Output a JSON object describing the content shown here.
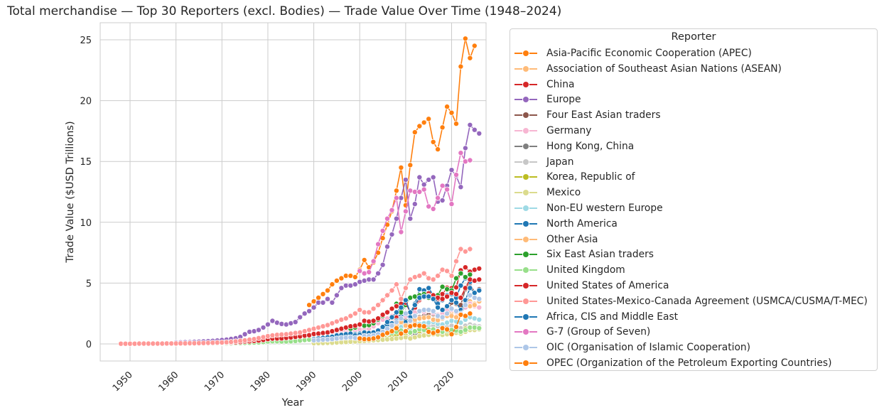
{
  "chart_data": {
    "type": "line",
    "title": "Total merchandise — Top 30 Reporters (excl. Bodies) — Trade Value Over Time (1948–2024)",
    "xlabel": "Year",
    "ylabel": "Trade Value ($USD Trillions)",
    "xlim": [
      1943.5,
      2027.5
    ],
    "ylim": [
      -1.4,
      26.4
    ],
    "xticks": [
      1950,
      1960,
      1970,
      1980,
      1990,
      2000,
      2010,
      2020
    ],
    "yticks": [
      0,
      5,
      10,
      15,
      20,
      25
    ],
    "grid": true,
    "legend_title": "Reporter",
    "legend_position": "outside-right",
    "series": [
      {
        "name": "Asia-Pacific Economic Cooperation (APEC)",
        "color": "#ff7f0e",
        "x_start": 1989,
        "values": [
          3.2,
          3.5,
          3.8,
          4.1,
          4.4,
          4.9,
          5.2,
          5.4,
          5.6,
          5.6,
          5.5,
          6.1,
          6.9,
          6.3,
          6.7,
          7.5,
          8.7,
          9.8,
          10.9,
          12.6,
          14.5,
          11.4,
          14.7,
          17.4,
          17.9,
          18.2,
          18.5,
          16.6,
          16.0,
          17.8,
          19.5,
          19.0,
          18.1,
          22.8,
          25.1,
          23.5,
          24.5
        ]
      },
      {
        "name": "Association of Southeast Asian Nations (ASEAN)",
        "color": "#ffbb78",
        "x_start": 1990,
        "values": [
          0.3,
          0.35,
          0.4,
          0.45,
          0.5,
          0.6,
          0.7,
          0.75,
          0.8,
          0.7,
          0.7,
          0.8,
          0.9,
          0.85,
          0.9,
          1.0,
          1.2,
          1.35,
          1.5,
          1.7,
          1.9,
          1.5,
          1.9,
          2.2,
          2.3,
          2.4,
          2.45,
          2.2,
          2.1,
          2.4,
          2.6,
          2.55,
          2.5,
          3.0,
          3.5,
          3.3,
          3.5
        ]
      },
      {
        "name": "China",
        "color": "#d62728",
        "x_start": 1990,
        "values": [
          0.12,
          0.14,
          0.17,
          0.2,
          0.24,
          0.24,
          0.28,
          0.29,
          0.32,
          0.32,
          0.36,
          0.47,
          0.51,
          0.62,
          0.85,
          1.15,
          1.42,
          1.76,
          2.18,
          2.56,
          1.7,
          2.2,
          2.97,
          3.6,
          3.87,
          4.16,
          3.95,
          3.68,
          4.1,
          4.62,
          4.58,
          4.65,
          6.05,
          6.3,
          5.94,
          6.1,
          6.2
        ]
      },
      {
        "name": "Europe",
        "color": "#9467bd",
        "x_start": 1960,
        "values": [
          0.12,
          0.13,
          0.14,
          0.15,
          0.17,
          0.19,
          0.21,
          0.23,
          0.25,
          0.28,
          0.32,
          0.36,
          0.41,
          0.47,
          0.58,
          0.8,
          1.0,
          1.05,
          1.15,
          1.35,
          1.6,
          1.9,
          1.75,
          1.65,
          1.6,
          1.7,
          1.8,
          2.2,
          2.5,
          2.7,
          3.0,
          3.4,
          3.4,
          3.7,
          3.4,
          4.0,
          4.6,
          4.8,
          4.8,
          4.9,
          5.1,
          5.2,
          5.3,
          5.3,
          5.8,
          6.5,
          8.0,
          9.0,
          10.3,
          12.0,
          13.5,
          10.3,
          11.5,
          13.7,
          13.1,
          13.5,
          13.7,
          11.7,
          11.8,
          13.0,
          14.3,
          13.8,
          12.9,
          16.1,
          18.0,
          17.6,
          17.3
        ]
      },
      {
        "name": "Four East Asian traders",
        "color": "#8c564b",
        "x_start": 1990,
        "values": [
          0.3,
          0.35,
          0.4,
          0.45,
          0.5,
          0.6,
          0.7,
          0.75,
          0.8,
          0.7,
          0.7,
          0.8,
          0.9,
          0.85,
          0.9,
          1.0,
          1.2,
          1.35,
          1.5,
          1.7,
          1.9,
          1.5,
          1.9,
          2.2,
          2.3,
          2.4,
          2.45,
          2.2,
          2.1,
          2.4,
          3.4,
          3.3,
          3.2,
          4.5,
          5.0,
          4.2,
          4.5
        ]
      },
      {
        "name": "Germany",
        "color": "#f7b6d2",
        "x_start": 1990,
        "values": [
          0.9,
          0.9,
          0.9,
          0.85,
          0.9,
          1.0,
          1.1,
          1.05,
          1.1,
          1.1,
          1.2,
          1.2,
          1.25,
          1.45,
          1.7,
          2.0,
          2.1,
          2.3,
          2.6,
          2.8,
          2.3,
          2.4,
          2.6,
          2.7,
          2.65,
          2.75,
          2.55,
          2.4,
          2.5,
          2.8,
          2.8,
          2.6,
          2.6,
          3.0,
          3.3,
          3.1,
          3.0
        ]
      },
      {
        "name": "Hong Kong, China",
        "color": "#7f7f7f",
        "x_start": 1990,
        "values": [
          0.15,
          0.18,
          0.22,
          0.25,
          0.28,
          0.32,
          0.37,
          0.4,
          0.42,
          0.4,
          0.37,
          0.4,
          0.45,
          0.42,
          0.44,
          0.48,
          0.55,
          0.6,
          0.65,
          0.7,
          0.75,
          0.62,
          0.78,
          0.88,
          0.95,
          1.0,
          1.05,
          1.0,
          0.97,
          1.05,
          1.15,
          1.1,
          1.05,
          1.25,
          1.3,
          1.2,
          1.25
        ]
      },
      {
        "name": "Japan",
        "color": "#c7c7c7",
        "x_start": 1990,
        "values": [
          0.5,
          0.55,
          0.57,
          0.6,
          0.65,
          0.7,
          0.75,
          0.77,
          0.8,
          0.7,
          0.75,
          0.8,
          0.75,
          0.72,
          0.75,
          0.85,
          0.95,
          1.0,
          1.1,
          1.15,
          1.2,
          1.1,
          1.3,
          1.35,
          1.45,
          1.5,
          1.5,
          1.45,
          1.3,
          1.4,
          1.5,
          1.45,
          1.3,
          1.5,
          1.6,
          1.5,
          1.45
        ]
      },
      {
        "name": "Korea, Republic of",
        "color": "#bcbd22",
        "x_start": 1990,
        "values": [
          0.14,
          0.15,
          0.16,
          0.17,
          0.18,
          0.2,
          0.25,
          0.28,
          0.29,
          0.28,
          0.27,
          0.33,
          0.32,
          0.34,
          0.38,
          0.48,
          0.55,
          0.63,
          0.72,
          0.86,
          0.68,
          0.89,
          1.08,
          1.06,
          1.08,
          1.1,
          1.0,
          0.96,
          1.05,
          1.15,
          1.1,
          1.05,
          1.0,
          1.26,
          1.4,
          1.28,
          1.32
        ]
      },
      {
        "name": "Mexico",
        "color": "#dbdb8d",
        "x_start": 1990,
        "values": [
          0.06,
          0.07,
          0.08,
          0.09,
          0.1,
          0.12,
          0.14,
          0.16,
          0.18,
          0.2,
          0.22,
          0.25,
          0.28,
          0.3,
          0.32,
          0.35,
          0.38,
          0.41,
          0.45,
          0.5,
          0.55,
          0.45,
          0.55,
          0.65,
          0.7,
          0.75,
          0.8,
          0.78,
          0.75,
          0.8,
          0.9,
          0.92,
          0.85,
          1.0,
          1.15,
          1.15,
          1.2
        ]
      },
      {
        "name": "Non-EU western Europe",
        "color": "#9edae5",
        "x_start": 1990,
        "values": [
          0.4,
          0.4,
          0.42,
          0.42,
          0.45,
          0.5,
          0.55,
          0.57,
          0.58,
          0.6,
          0.65,
          0.7,
          0.75,
          0.8,
          0.85,
          0.95,
          1.05,
          1.15,
          1.25,
          1.4,
          1.5,
          1.3,
          1.5,
          1.65,
          1.7,
          1.75,
          1.8,
          1.65,
          1.6,
          1.75,
          1.9,
          1.85,
          1.75,
          2.0,
          2.2,
          2.1,
          2.0
        ]
      },
      {
        "name": "North America",
        "color": "#1f77b4",
        "x_start": 1993,
        "values": [
          0.5,
          0.55,
          0.6,
          0.65,
          0.7,
          0.75,
          0.8,
          0.85,
          0.95,
          0.9,
          0.95,
          1.1,
          1.3,
          1.5,
          1.7,
          1.9,
          2.3,
          1.8,
          2.2,
          3.3,
          4.5,
          4.4,
          4.6,
          4.0,
          3.3,
          3.6,
          4.0,
          4.1,
          3.8,
          4.8,
          5.4,
          5.1,
          5.2
        ]
      },
      {
        "name": "Other Asia",
        "color": "#ffbb78",
        "x_start": 1993,
        "values": [
          0.35,
          0.4,
          0.45,
          0.5,
          0.55,
          0.6,
          0.6,
          0.62,
          0.7,
          0.68,
          0.72,
          0.8,
          0.95,
          1.1,
          1.3,
          1.5,
          1.8,
          1.5,
          1.8,
          2.0,
          2.1,
          2.15,
          2.2,
          2.0,
          1.95,
          2.1,
          2.3,
          2.3,
          2.2,
          2.8,
          3.3,
          3.1,
          3.2
        ]
      },
      {
        "name": "Six East Asian traders",
        "color": "#2ca02c",
        "x_start": 1995,
        "values": [
          1.2,
          1.3,
          1.35,
          1.25,
          1.35,
          1.6,
          1.5,
          1.55,
          1.7,
          2.0,
          2.3,
          2.6,
          2.9,
          3.3,
          2.6,
          3.2,
          3.8,
          3.9,
          4.0,
          4.1,
          3.8,
          3.7,
          4.0,
          4.7,
          4.5,
          4.4,
          5.4,
          5.8,
          5.5,
          5.7
        ]
      },
      {
        "name": "United Kingdom",
        "color": "#98df8a",
        "x_start": 1960,
        "values": [
          0.02,
          0.02,
          0.02,
          0.02,
          0.02,
          0.03,
          0.03,
          0.03,
          0.03,
          0.03,
          0.04,
          0.04,
          0.05,
          0.06,
          0.08,
          0.09,
          0.1,
          0.11,
          0.13,
          0.16,
          0.2,
          0.22,
          0.21,
          0.2,
          0.2,
          0.21,
          0.24,
          0.28,
          0.32,
          0.35,
          0.4,
          0.4,
          0.42,
          0.4,
          0.43,
          0.48,
          0.52,
          0.56,
          0.56,
          0.55,
          0.6,
          0.6,
          0.58,
          0.6,
          0.68,
          0.8,
          0.85,
          0.9,
          1.0,
          1.1,
          1.1,
          0.95,
          1.05,
          1.2,
          1.15,
          1.2,
          1.2,
          1.05,
          1.0,
          1.1,
          1.15,
          1.1,
          1.0,
          1.15,
          1.35,
          1.35,
          1.3
        ]
      },
      {
        "name": "United States of America",
        "color": "#d62728",
        "x_start": 1960,
        "values": [
          0.03,
          0.03,
          0.03,
          0.04,
          0.04,
          0.05,
          0.05,
          0.06,
          0.07,
          0.08,
          0.09,
          0.1,
          0.11,
          0.13,
          0.16,
          0.2,
          0.22,
          0.25,
          0.28,
          0.33,
          0.4,
          0.44,
          0.45,
          0.46,
          0.5,
          0.54,
          0.58,
          0.62,
          0.68,
          0.72,
          0.82,
          0.85,
          0.9,
          0.95,
          1.05,
          1.15,
          1.25,
          1.35,
          1.45,
          1.5,
          1.6,
          1.9,
          1.85,
          1.9,
          2.1,
          2.4,
          2.6,
          2.9,
          3.1,
          3.3,
          3.4,
          2.6,
          3.2,
          3.7,
          3.85,
          3.95,
          4.0,
          3.8,
          3.7,
          3.9,
          4.2,
          4.1,
          3.8,
          4.6,
          5.3,
          5.2,
          5.3
        ]
      },
      {
        "name": "United States-Mexico-Canada Agreement (USMCA/CUSMA/T-MEC)",
        "color": "#ff9896",
        "x_start": 1948,
        "values": [
          0.02,
          0.02,
          0.02,
          0.02,
          0.03,
          0.03,
          0.03,
          0.03,
          0.03,
          0.03,
          0.04,
          0.04,
          0.04,
          0.05,
          0.05,
          0.06,
          0.06,
          0.07,
          0.08,
          0.09,
          0.1,
          0.11,
          0.12,
          0.14,
          0.17,
          0.21,
          0.26,
          0.3,
          0.35,
          0.4,
          0.48,
          0.56,
          0.65,
          0.7,
          0.75,
          0.78,
          0.8,
          0.85,
          0.9,
          0.95,
          1.05,
          1.15,
          1.25,
          1.35,
          1.45,
          1.55,
          1.7,
          1.85,
          2.0,
          2.1,
          2.3,
          2.5,
          2.8,
          2.6,
          2.6,
          2.9,
          3.2,
          3.6,
          4.0,
          4.4,
          4.9,
          3.7,
          4.6,
          5.3,
          5.5,
          5.6,
          5.8,
          5.4,
          5.3,
          5.6,
          6.1,
          6.0,
          5.6,
          6.8,
          7.8,
          7.6,
          7.8
        ]
      },
      {
        "name": "Africa, CIS and Middle East",
        "color": "#1f77b4",
        "x_start": 1990,
        "values": [
          0.4,
          0.45,
          0.5,
          0.55,
          0.6,
          0.7,
          0.75,
          0.8,
          0.85,
          0.7,
          0.75,
          0.95,
          0.9,
          0.95,
          1.1,
          1.4,
          1.8,
          2.2,
          2.6,
          3.0,
          3.6,
          2.6,
          3.2,
          3.8,
          3.9,
          3.9,
          3.7,
          3.0,
          2.8,
          3.1,
          3.6,
          3.4,
          2.8,
          3.6,
          4.6,
          4.2,
          4.4
        ]
      },
      {
        "name": "G-7 (Group of Seven)",
        "color": "#e377c2",
        "x_start": 2000,
        "values": [
          6.0,
          5.8,
          5.9,
          6.8,
          8.2,
          9.3,
          10.3,
          11.0,
          12.0,
          9.2,
          10.9,
          12.6,
          12.5,
          12.5,
          12.7,
          11.3,
          11.1,
          12.0,
          13.0,
          12.7,
          11.5,
          13.9,
          15.7,
          15.0,
          15.1
        ]
      },
      {
        "name": "OIC (Organisation of Islamic Cooperation)",
        "color": "#aec7e8",
        "x_start": 1990,
        "values": [
          0.3,
          0.32,
          0.35,
          0.37,
          0.4,
          0.45,
          0.5,
          0.52,
          0.55,
          0.5,
          0.55,
          0.65,
          0.65,
          0.7,
          0.8,
          1.0,
          1.25,
          1.5,
          1.8,
          2.1,
          2.5,
          1.9,
          2.3,
          2.7,
          2.8,
          2.8,
          2.7,
          2.3,
          2.2,
          2.5,
          2.9,
          2.7,
          2.5,
          3.2,
          4.0,
          3.8,
          3.7
        ]
      },
      {
        "name": "OPEC (Organization of the Petroleum Exporting Countries)",
        "color": "#ff7f0e",
        "x_start": 2000,
        "values": [
          0.45,
          0.4,
          0.4,
          0.45,
          0.55,
          0.75,
          0.9,
          1.05,
          1.3,
          0.85,
          1.05,
          1.45,
          1.55,
          1.5,
          1.45,
          1.0,
          0.9,
          1.05,
          1.3,
          1.2,
          0.8,
          1.4,
          2.4,
          2.3,
          2.5
        ]
      }
    ]
  }
}
